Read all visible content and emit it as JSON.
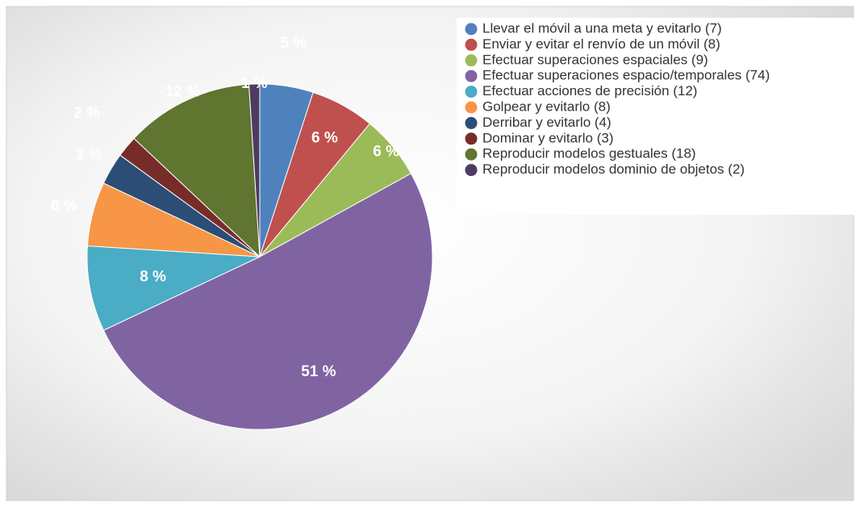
{
  "chart_data": {
    "type": "pie",
    "categories": [
      "Llevar el móvil a una meta y evitarlo (7)",
      "Enviar y evitar el renvío de un móvil (8)",
      "Efectuar superaciones espaciales (9)",
      "Efectuar superaciones espacio/temporales (74)",
      "Efectuar acciones de precisión (12)",
      "Golpear y evitarlo (8)",
      "Derribar y evitarlo (4)",
      "Dominar y evitarlo (3)",
      "Reproducir modelos gestuales  (18)",
      "Reproducir modelos dominio de objetos (2)"
    ],
    "values": [
      5,
      6,
      6,
      51,
      8,
      6,
      3,
      2,
      12,
      1
    ],
    "value_labels": [
      "5 %",
      "6 %",
      "6 %",
      "51 %",
      "8 %",
      "6 %",
      "3 %",
      "2 %",
      "12 %",
      "1 %"
    ],
    "colors": [
      "#4f81bd",
      "#c0504d",
      "#9bbb59",
      "#8064a2",
      "#4bacc6",
      "#f79646",
      "#2c4d75",
      "#772c2a",
      "#5f7530",
      "#4d3b62"
    ],
    "legend": "top-right"
  }
}
